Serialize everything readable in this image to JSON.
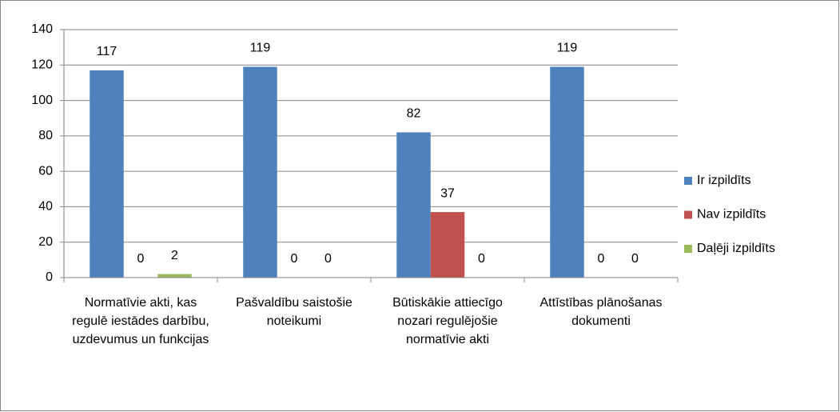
{
  "chart_data": {
    "type": "bar",
    "categories": [
      "Normatīvie akti, kas regulē iestādes darbību, uzdevumus un funkcijas",
      "Pašvaldību saistošie noteikumi",
      "Būtiskākie attiecīgo nozari regulējošie normatīvie akti",
      "Attīstības plānošanas dokumenti"
    ],
    "series": [
      {
        "name": "Ir izpildīts",
        "color": "#4f81bd",
        "values": [
          117,
          119,
          82,
          119
        ]
      },
      {
        "name": "Nav izpildīts",
        "color": "#c0504d",
        "values": [
          0,
          0,
          37,
          0
        ]
      },
      {
        "name": "Daļēji izpildīts",
        "color": "#9bbb59",
        "values": [
          2,
          0,
          0,
          0
        ]
      }
    ],
    "ylim": [
      0,
      140
    ],
    "yticks": [
      0,
      20,
      40,
      60,
      80,
      100,
      120,
      140
    ],
    "grid": true,
    "legend": "right"
  }
}
